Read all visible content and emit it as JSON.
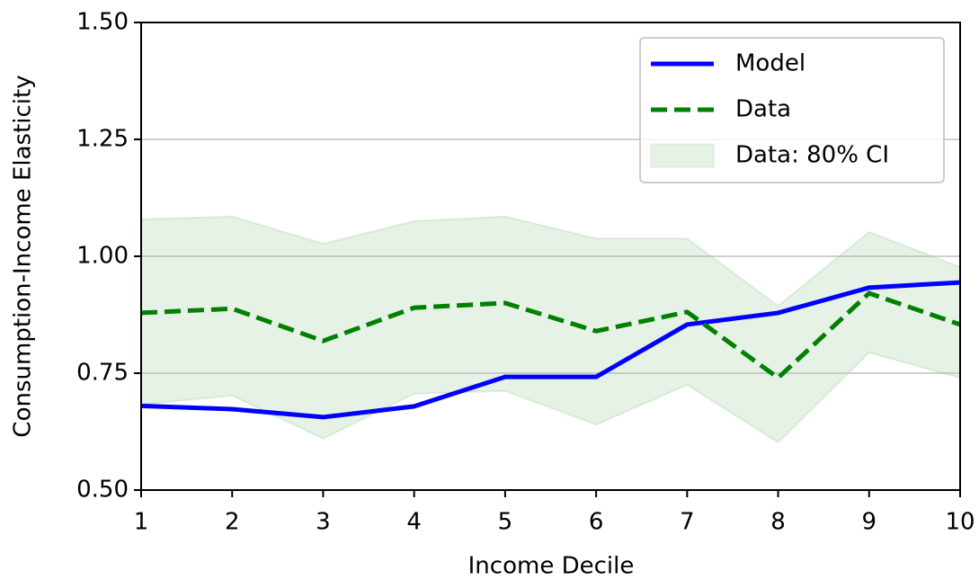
{
  "chart_data": {
    "type": "line",
    "xlabel": "Income Decile",
    "ylabel": "Consumption-Income Elasticity",
    "x": [
      1,
      2,
      3,
      4,
      5,
      6,
      7,
      8,
      9,
      10
    ],
    "series": [
      {
        "name": "Model",
        "color": "#0000ff",
        "dash": false,
        "values": [
          0.68,
          0.673,
          0.656,
          0.679,
          0.742,
          0.742,
          0.854,
          0.879,
          0.933,
          0.944
        ]
      },
      {
        "name": "Data",
        "color": "#008000",
        "dash": true,
        "values": [
          0.879,
          0.888,
          0.819,
          0.89,
          0.9,
          0.84,
          0.881,
          0.74,
          0.921,
          0.854
        ]
      }
    ],
    "band": {
      "name": "Data: 80% CI",
      "color": "#008000",
      "lower": [
        0.683,
        0.702,
        0.61,
        0.706,
        0.712,
        0.64,
        0.725,
        0.602,
        0.794,
        0.74
      ],
      "upper": [
        1.079,
        1.085,
        1.027,
        1.075,
        1.085,
        1.038,
        1.038,
        0.894,
        1.052,
        0.977
      ]
    },
    "xlim": [
      1,
      10
    ],
    "xticks": [
      1,
      2,
      3,
      4,
      5,
      6,
      7,
      8,
      9,
      10
    ],
    "ylim": [
      0.5,
      1.5
    ],
    "yticks": [
      {
        "value": 0.5,
        "label": "0.50"
      },
      0.75,
      {
        "value": 1.0,
        "label": "1.00"
      },
      1.25,
      {
        "value": 1.5,
        "label": "1.50"
      }
    ],
    "grid": true,
    "legend": "upper right"
  }
}
